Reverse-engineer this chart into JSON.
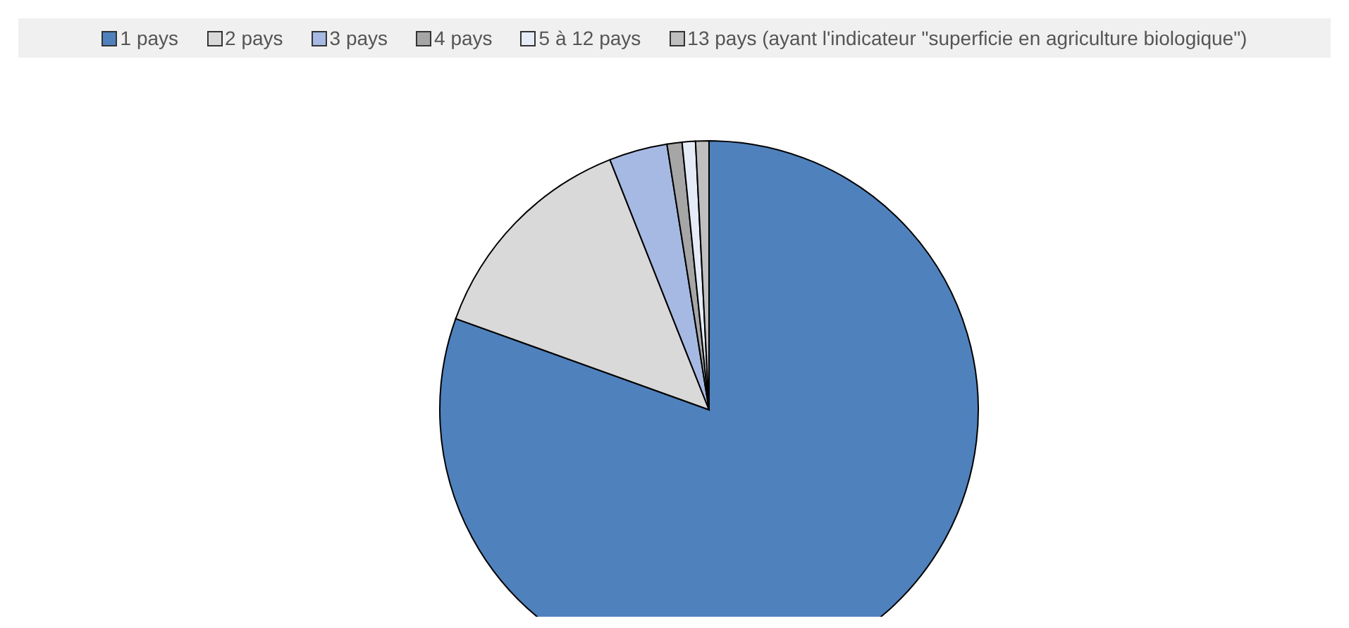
{
  "chart_data": {
    "type": "pie",
    "categories": [
      "1 pays",
      "2 pays",
      "3 pays",
      "4 pays",
      "5 à 12 pays",
      "13 pays (ayant l'indicateur \"superficie en agriculture biologique\")"
    ],
    "values": [
      80.5,
      13.5,
      3.5,
      0.9,
      0.8,
      0.8
    ],
    "colors": [
      "#4f81bd",
      "#d9d9d9",
      "#a6b9e3",
      "#a6a6a6",
      "#e6ecf7",
      "#bfbfbf"
    ],
    "legend": "top"
  }
}
